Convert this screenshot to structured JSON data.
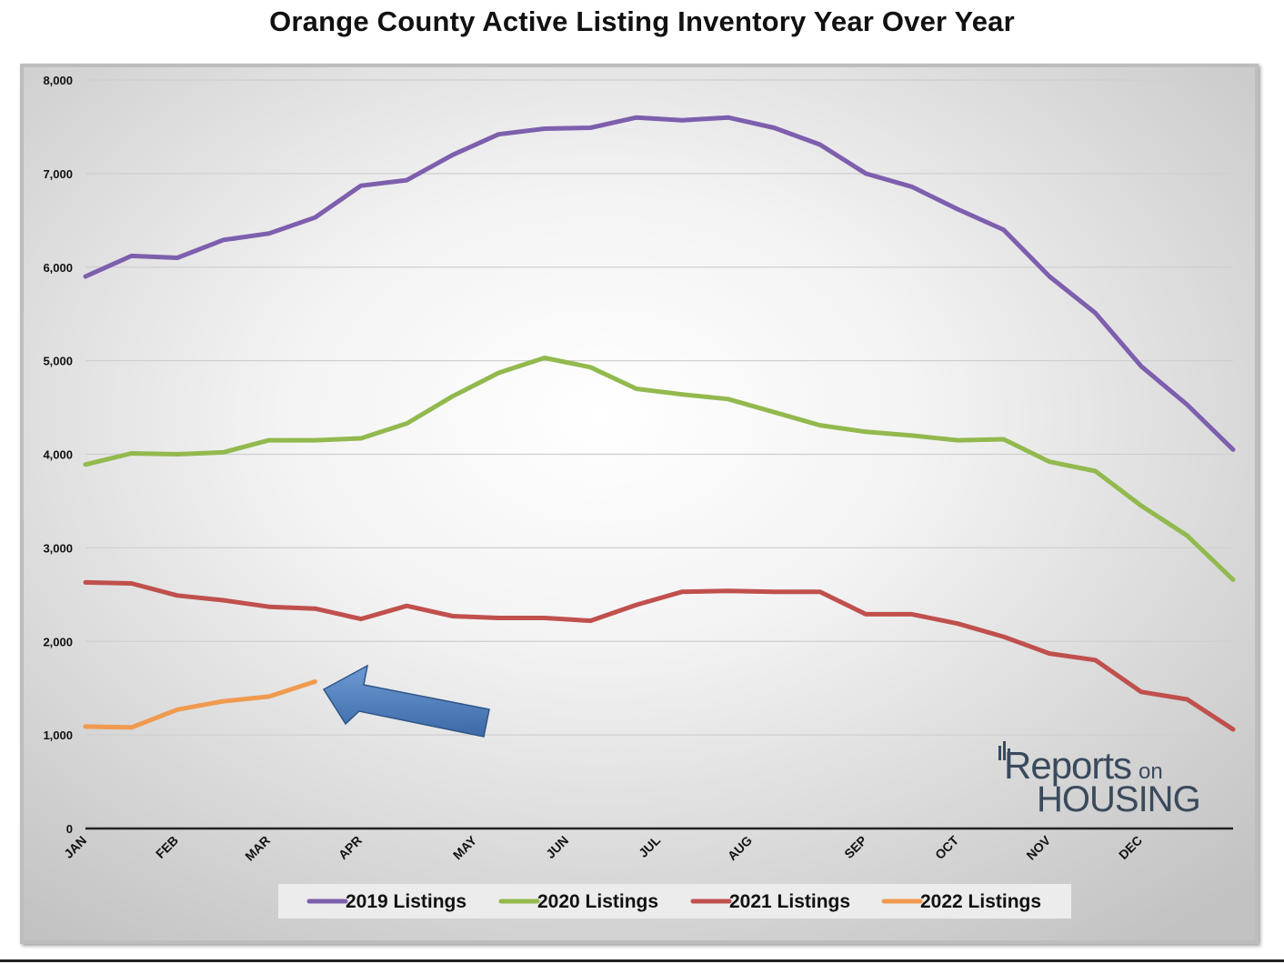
{
  "chart_data": {
    "type": "line",
    "title": "Orange County Active Listing Inventory Year Over Year",
    "xlabel": "",
    "ylabel": "",
    "ylim": [
      0,
      8000
    ],
    "yticks": [
      0,
      1000,
      2000,
      3000,
      4000,
      5000,
      6000,
      7000,
      8000
    ],
    "ytick_labels": [
      "0",
      "1,000",
      "2,000",
      "3,000",
      "4,000",
      "5,000",
      "6,000",
      "7,000",
      "8,000"
    ],
    "month_labels": [
      {
        "label": "JAN",
        "week": 0
      },
      {
        "label": "FEB",
        "week": 4
      },
      {
        "label": "MAR",
        "week": 8
      },
      {
        "label": "APR",
        "week": 12
      },
      {
        "label": "MAY",
        "week": 17
      },
      {
        "label": "JUN",
        "week": 21
      },
      {
        "label": "JUL",
        "week": 25
      },
      {
        "label": "AUG",
        "week": 29
      },
      {
        "label": "SEP",
        "week": 34
      },
      {
        "label": "OCT",
        "week": 38
      },
      {
        "label": "NOV",
        "week": 42
      },
      {
        "label": "DEC",
        "week": 46
      }
    ],
    "grid": true,
    "legend_position": "bottom",
    "series": [
      {
        "name": "2019 Listings",
        "color": "#7d5fae",
        "values": [
          5900,
          6120,
          6100,
          6290,
          6360,
          6530,
          6870,
          6930,
          7200,
          7420,
          7480,
          7490,
          7600,
          7570,
          7600,
          7490,
          7310,
          7000,
          6860,
          6620,
          6400,
          5900,
          5510,
          4940,
          4530,
          4050
        ]
      },
      {
        "name": "2020 Listings",
        "color": "#92b94e",
        "values": [
          3890,
          4010,
          4000,
          4020,
          4150,
          4150,
          4170,
          4330,
          4620,
          4870,
          5030,
          4930,
          4700,
          4640,
          4590,
          4450,
          4310,
          4240,
          4200,
          4150,
          4160,
          3920,
          3820,
          3450,
          3130,
          2660
        ]
      },
      {
        "name": "2021 Listings",
        "color": "#c0504d",
        "values": [
          2630,
          2620,
          2490,
          2440,
          2370,
          2350,
          2240,
          2380,
          2270,
          2250,
          2250,
          2220,
          2390,
          2530,
          2540,
          2530,
          2530,
          2290,
          2290,
          2190,
          2050,
          1870,
          1800,
          1460,
          1380,
          1060
        ]
      },
      {
        "name": "2022 Listings",
        "color": "#f09a4f",
        "values": [
          1090,
          1080,
          1270,
          1360,
          1410,
          1570
        ]
      }
    ],
    "annotations": [
      {
        "type": "arrow",
        "color": "#4f81bd",
        "points_to_series": "2022 Listings"
      }
    ]
  },
  "logo": {
    "reports_text": "Reports",
    "on_text": "on",
    "housing_text": "HOUSING",
    "color": "#3a4a5c"
  }
}
